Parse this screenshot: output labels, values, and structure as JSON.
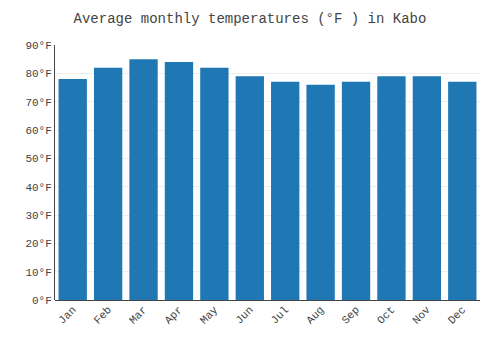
{
  "chart_data": {
    "type": "bar",
    "title": "Average monthly temperatures (°F ) in Kabo",
    "categories": [
      "Jan",
      "Feb",
      "Mar",
      "Apr",
      "May",
      "Jun",
      "Jul",
      "Aug",
      "Sep",
      "Oct",
      "Nov",
      "Dec"
    ],
    "values": [
      78,
      82,
      85,
      84,
      82,
      79,
      77,
      76,
      77,
      79,
      79,
      77
    ],
    "ylim": [
      0,
      90
    ],
    "yticks": [
      {
        "value": 0,
        "label": "0°F"
      },
      {
        "value": 10,
        "label": "10°F"
      },
      {
        "value": 20,
        "label": "20°F"
      },
      {
        "value": 30,
        "label": "30°F"
      },
      {
        "value": 40,
        "label": "40°F"
      },
      {
        "value": 50,
        "label": "50°F"
      },
      {
        "value": 60,
        "label": "60°F"
      },
      {
        "value": 70,
        "label": "70°F"
      },
      {
        "value": 80,
        "label": "80°F"
      },
      {
        "value": 90,
        "label": "90°F"
      }
    ],
    "grid": true
  }
}
